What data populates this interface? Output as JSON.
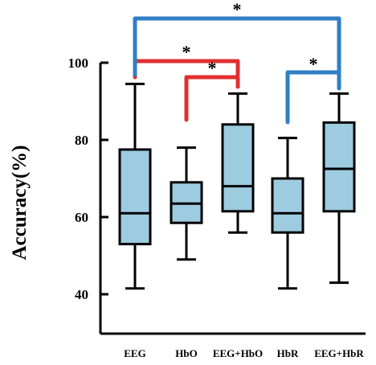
{
  "chart_data": {
    "type": "box",
    "ylabel": "Accuracy(%)",
    "ylim": [
      35,
      105
    ],
    "yticks": [
      40,
      60,
      80,
      100
    ],
    "categories": [
      "EEG",
      "HbO",
      "EEG+HbO",
      "HbR",
      "EEG+HbR"
    ],
    "boxes": [
      {
        "category": "EEG",
        "min": 41.5,
        "q1": 53.0,
        "median": 61.0,
        "q3": 77.5,
        "max": 94.5
      },
      {
        "category": "HbO",
        "min": 49.0,
        "q1": 58.5,
        "median": 63.5,
        "q3": 69.0,
        "max": 78.0
      },
      {
        "category": "EEG+HbO",
        "min": 56.0,
        "q1": 61.5,
        "median": 68.0,
        "q3": 84.0,
        "max": 92.0
      },
      {
        "category": "HbR",
        "min": 41.5,
        "q1": 56.0,
        "median": 61.0,
        "q3": 70.0,
        "max": 80.5
      },
      {
        "category": "EEG+HbR",
        "min": 43.0,
        "q1": 61.5,
        "median": 72.5,
        "q3": 84.5,
        "max": 92.0
      }
    ],
    "box_fill": "#9dcbdf",
    "significance": [
      {
        "from": "EEG",
        "to": "EEG+HbO",
        "label": "*",
        "color": "#e03030"
      },
      {
        "from": "HbO",
        "to": "EEG+HbO",
        "label": "*",
        "color": "#e03030"
      },
      {
        "from": "HbR",
        "to": "EEG+HbR",
        "label": "*",
        "color": "#2f7fc6"
      },
      {
        "from": "EEG",
        "to": "EEG+HbR",
        "label": "*",
        "color": "#2f7fc6"
      }
    ]
  }
}
